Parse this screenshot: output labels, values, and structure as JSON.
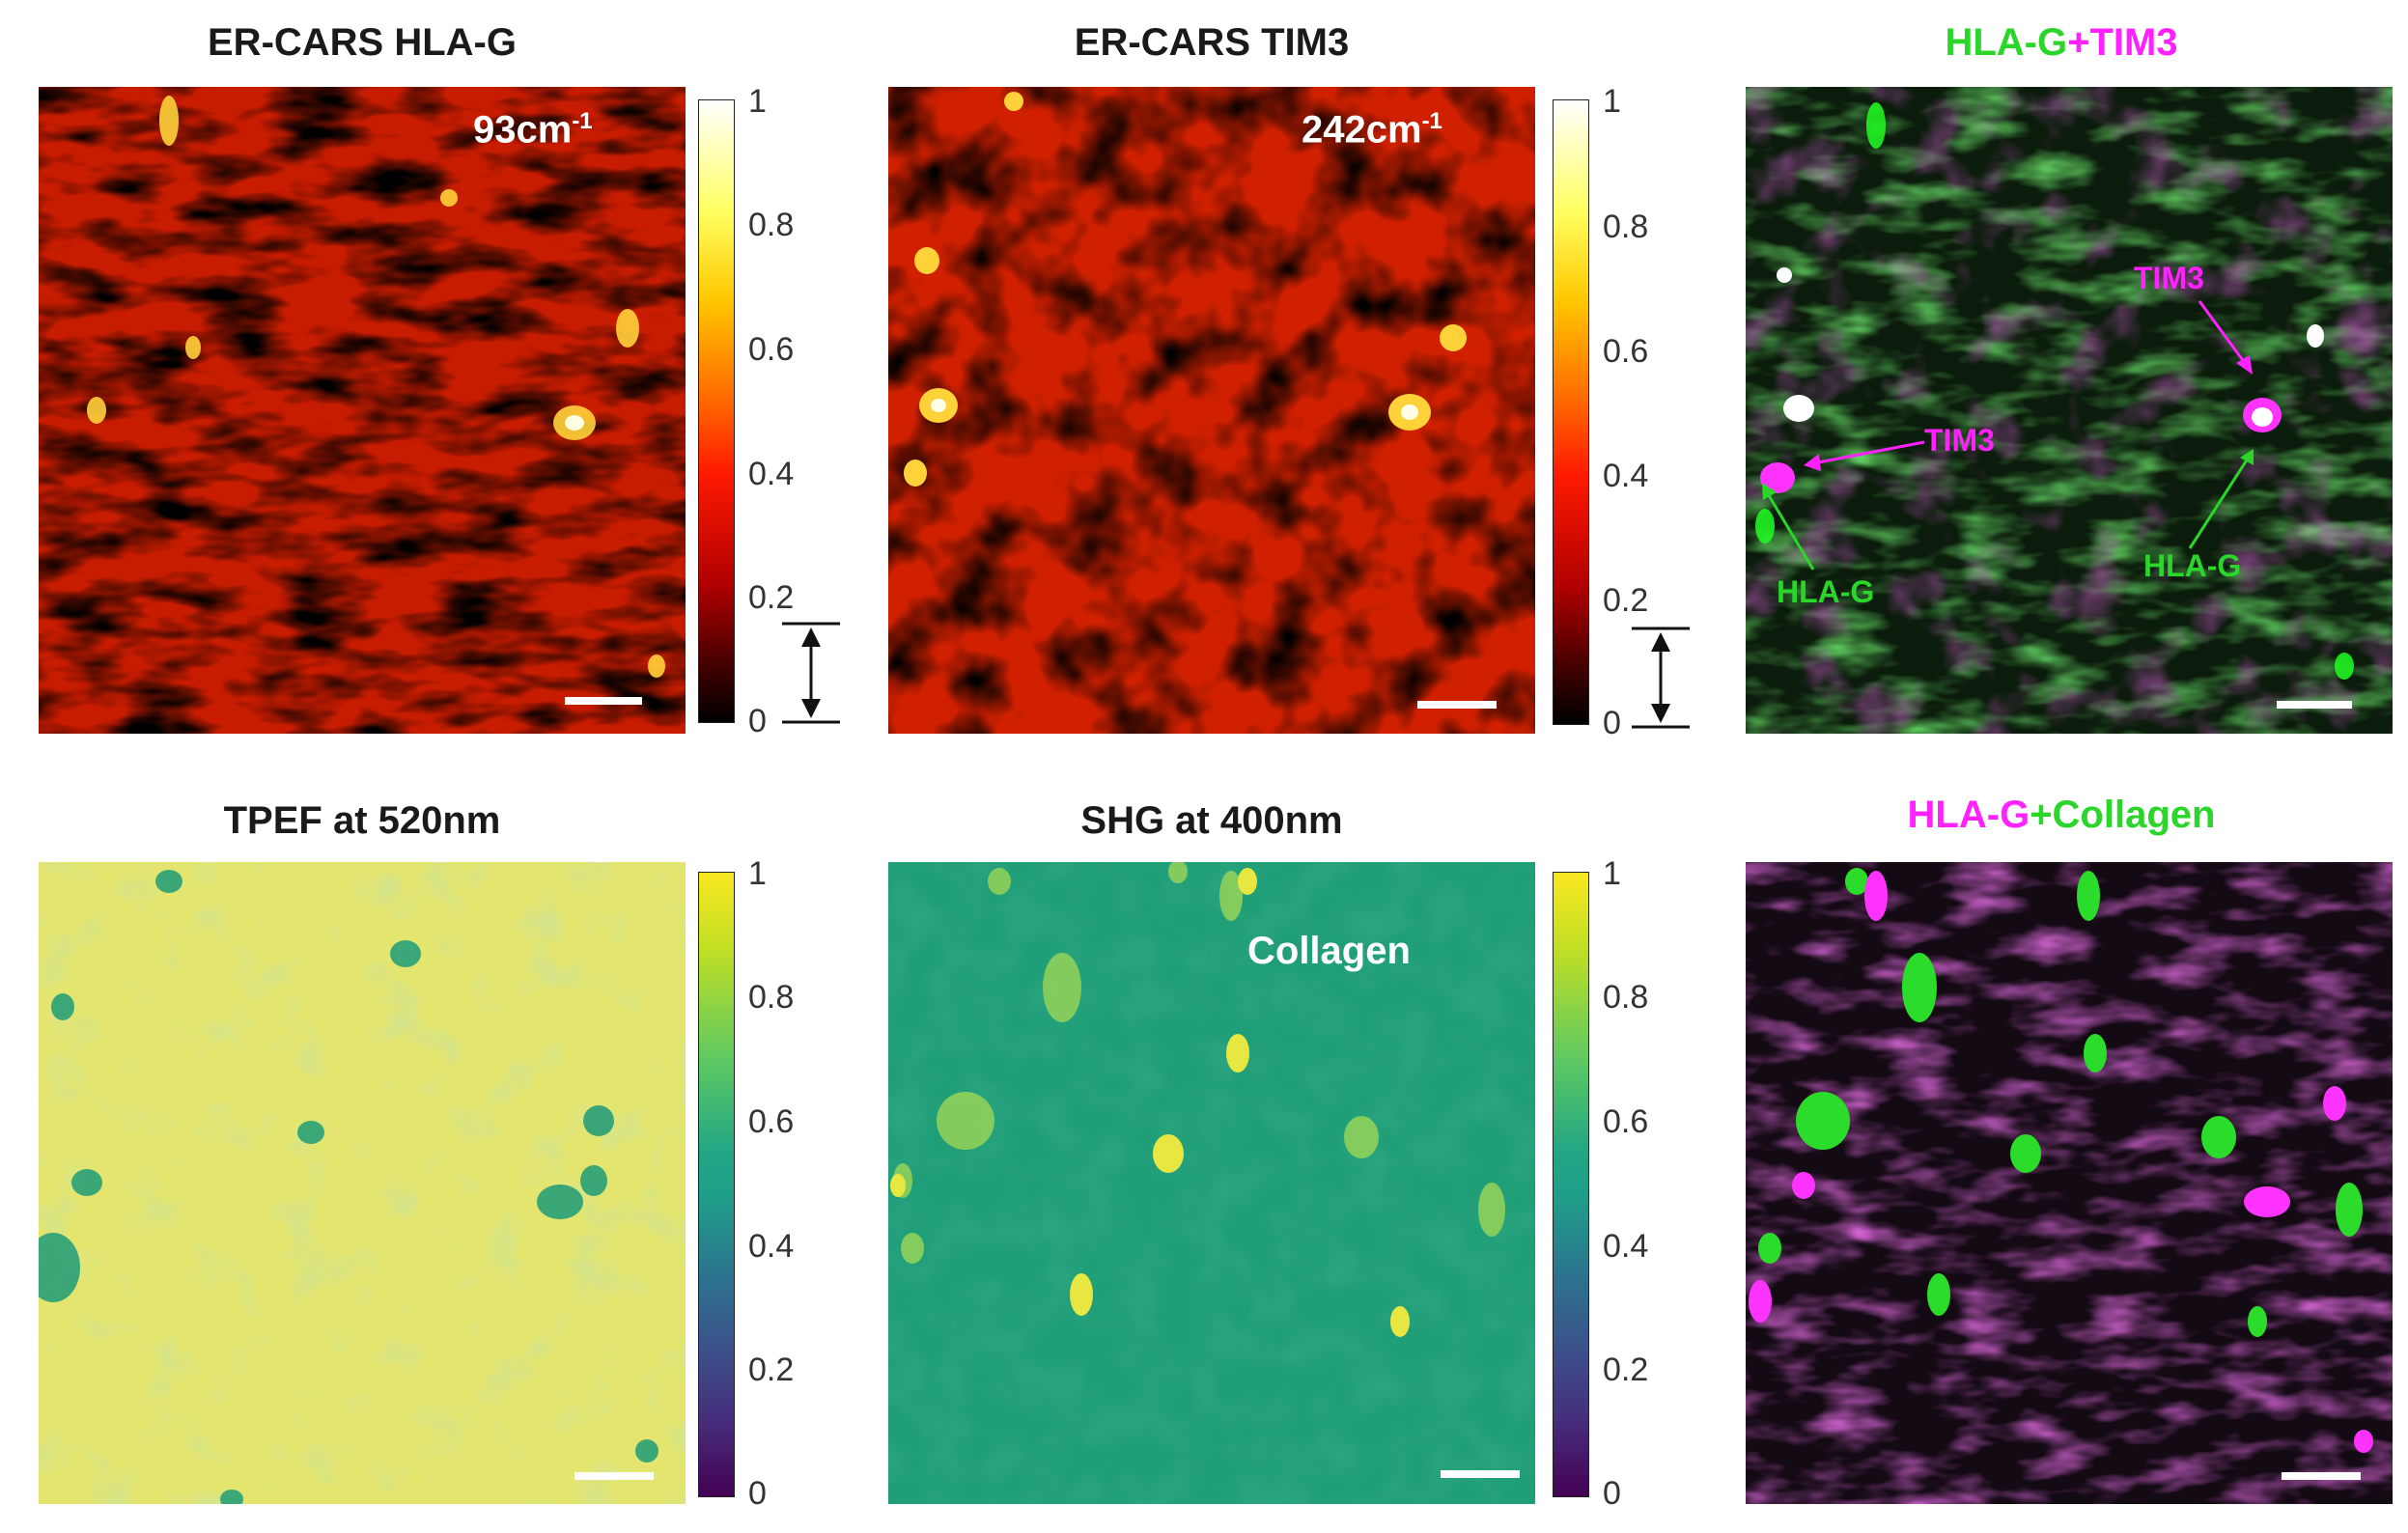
{
  "panels": {
    "hlag": {
      "title": "ER-CARS HLA-G",
      "wavenumber": "93cm",
      "wavenumber_exp": "-1"
    },
    "tim3": {
      "title": "ER-CARS TIM3",
      "wavenumber": "242cm",
      "wavenumber_exp": "-1"
    },
    "overlay1": {
      "title_a": "HLA-G",
      "title_b": "+TIM3",
      "labels": {
        "tim3_top": "TIM3",
        "tim3_left": "TIM3",
        "hlag_left": "HLA-G",
        "hlag_right": "HLA-G"
      }
    },
    "tpef": {
      "title": "TPEF at 520nm"
    },
    "shg": {
      "title": "SHG at 400nm",
      "label": "Collagen"
    },
    "overlay2": {
      "title_a": "HLA-G",
      "title_b": "+Collagen"
    }
  },
  "colorbar_ticks": [
    "1",
    "0.8",
    "0.6",
    "0.4",
    "0.2",
    "0"
  ],
  "colors": {
    "green_label": "#2bd62b",
    "magenta_label": "#ff22ff",
    "hot_dark": "#1a0000",
    "viridis_bg": "#1f9e7a"
  }
}
